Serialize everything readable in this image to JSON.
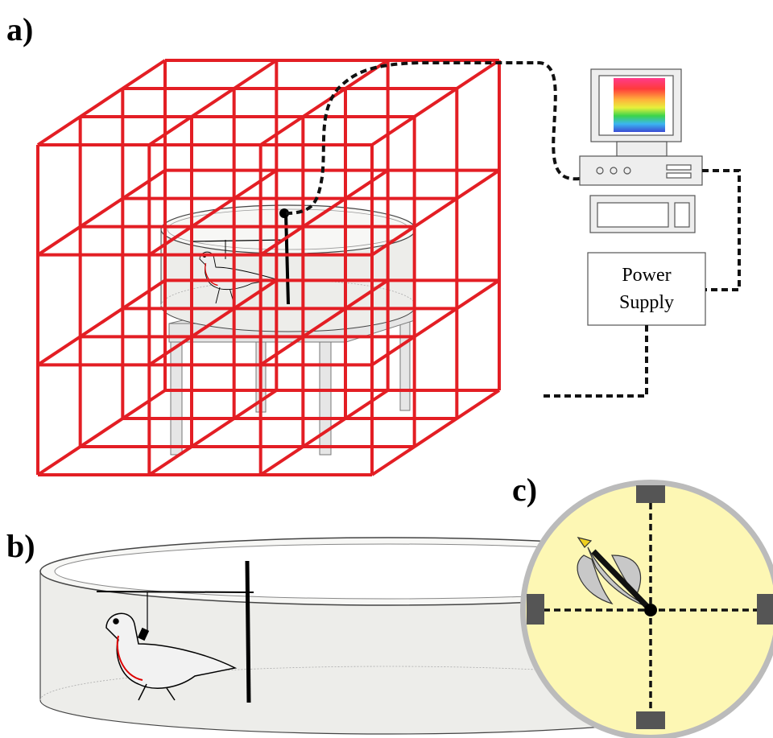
{
  "panels": [
    {
      "label": "a)"
    },
    {
      "label": "b)"
    },
    {
      "label": "c)"
    }
  ],
  "power_supply": {
    "label_lines": [
      "Power",
      "Supply"
    ]
  }
}
